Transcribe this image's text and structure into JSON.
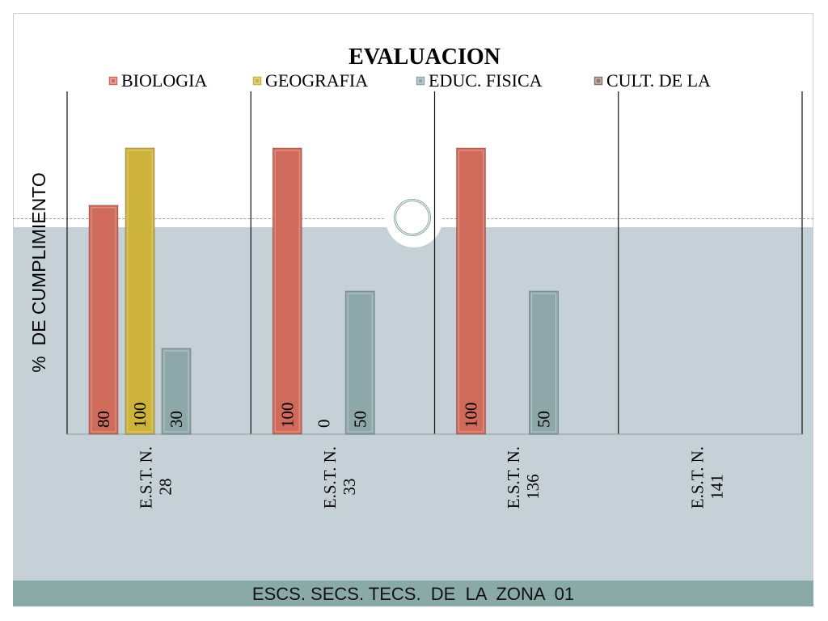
{
  "chart_data": {
    "type": "bar",
    "title": "EVALUACION",
    "xlabel": "",
    "ylabel": "%  DE CUMPLIMIENTO",
    "categories": [
      [
        "E.S.T. N.",
        "28"
      ],
      [
        "E.S.T. N.",
        "33"
      ],
      [
        "E.S.T. N.",
        "136"
      ],
      [
        "E.S.T. N.",
        "141"
      ]
    ],
    "series": [
      {
        "name": "BIOLOGIA",
        "values": [
          80,
          100,
          100,
          null
        ],
        "color": "#d06a5a"
      },
      {
        "name": "GEOGRAFIA",
        "values": [
          100,
          0,
          null,
          null
        ],
        "color": "#cdb33c"
      },
      {
        "name": "EDUC. FISICA",
        "values": [
          30,
          50,
          50,
          null
        ],
        "color": "#8ea8aa"
      },
      {
        "name": "CULT. DE LA",
        "values": [
          null,
          null,
          null,
          null
        ],
        "color": "#8d7570"
      }
    ],
    "ylim": [
      0,
      100
    ],
    "grid": false,
    "legend": "top"
  },
  "footer": {
    "text": "ESCS. SECS. TECS.  DE  LA  ZONA  01"
  }
}
